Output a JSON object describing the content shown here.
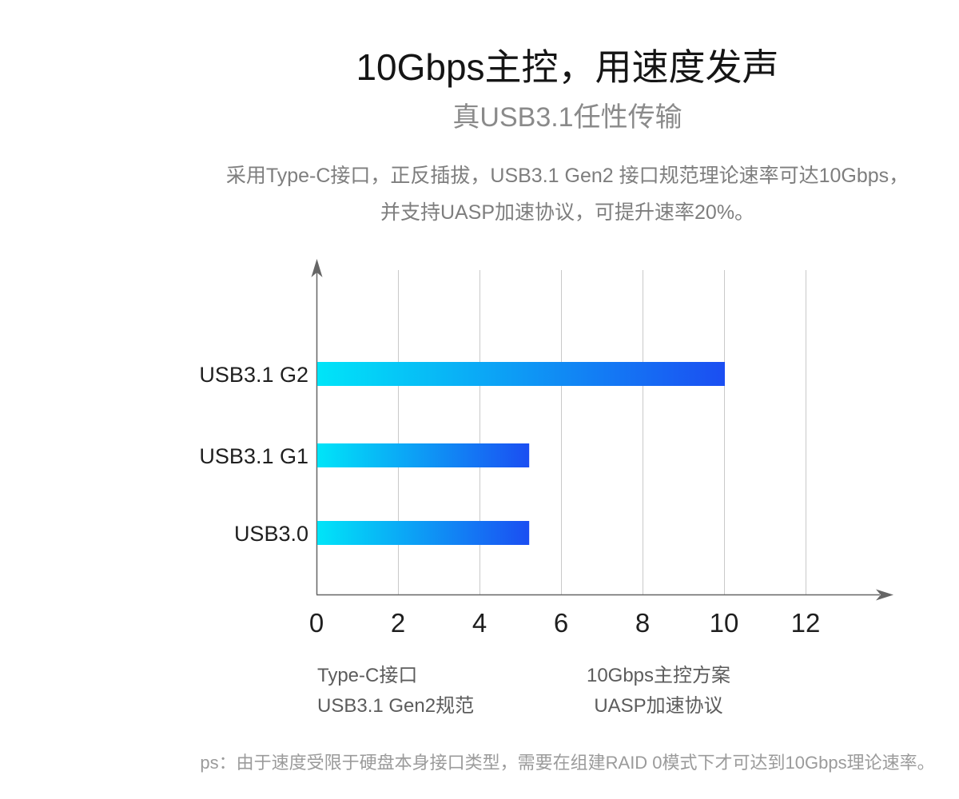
{
  "page": {
    "title": "10Gbps主控，用速度发声",
    "subtitle": "真USB3.1任性传输",
    "description": [
      "采用Type-C接口，正反插拔，USB3.1 Gen2 接口规范理论速率可达10Gbps，",
      "并支持UASP加速协议，可提升速率20%。"
    ],
    "footnote": "ps：由于速度受限于硬盘本身接口类型，需要在组建RAID 0模式下才可达到10Gbps理论速率。"
  },
  "chart_data": {
    "type": "bar",
    "orientation": "horizontal",
    "title": "",
    "categories": [
      "USB3.1 G2",
      "USB3.1 G1",
      "USB3.0"
    ],
    "values": [
      10,
      5.2,
      5.2
    ],
    "x_ticks": [
      0,
      2,
      4,
      6,
      8,
      10,
      12
    ],
    "xlim": [
      0,
      13.5
    ],
    "grid": "vertical-gridlines",
    "legend": "none",
    "colors": {
      "bar_gradient_start": "#00e5f8",
      "bar_gradient_end": "#1b4ef2",
      "grid": "#c9c9c9",
      "axis": "#666666",
      "tick_label": "#1f1f1f",
      "category_label": "#1f1f1f"
    }
  },
  "features": {
    "left_column": [
      "Type-C接口",
      "USB3.1 Gen2规范"
    ],
    "right_column": [
      "10Gbps主控方案",
      "UASP加速协议"
    ]
  }
}
